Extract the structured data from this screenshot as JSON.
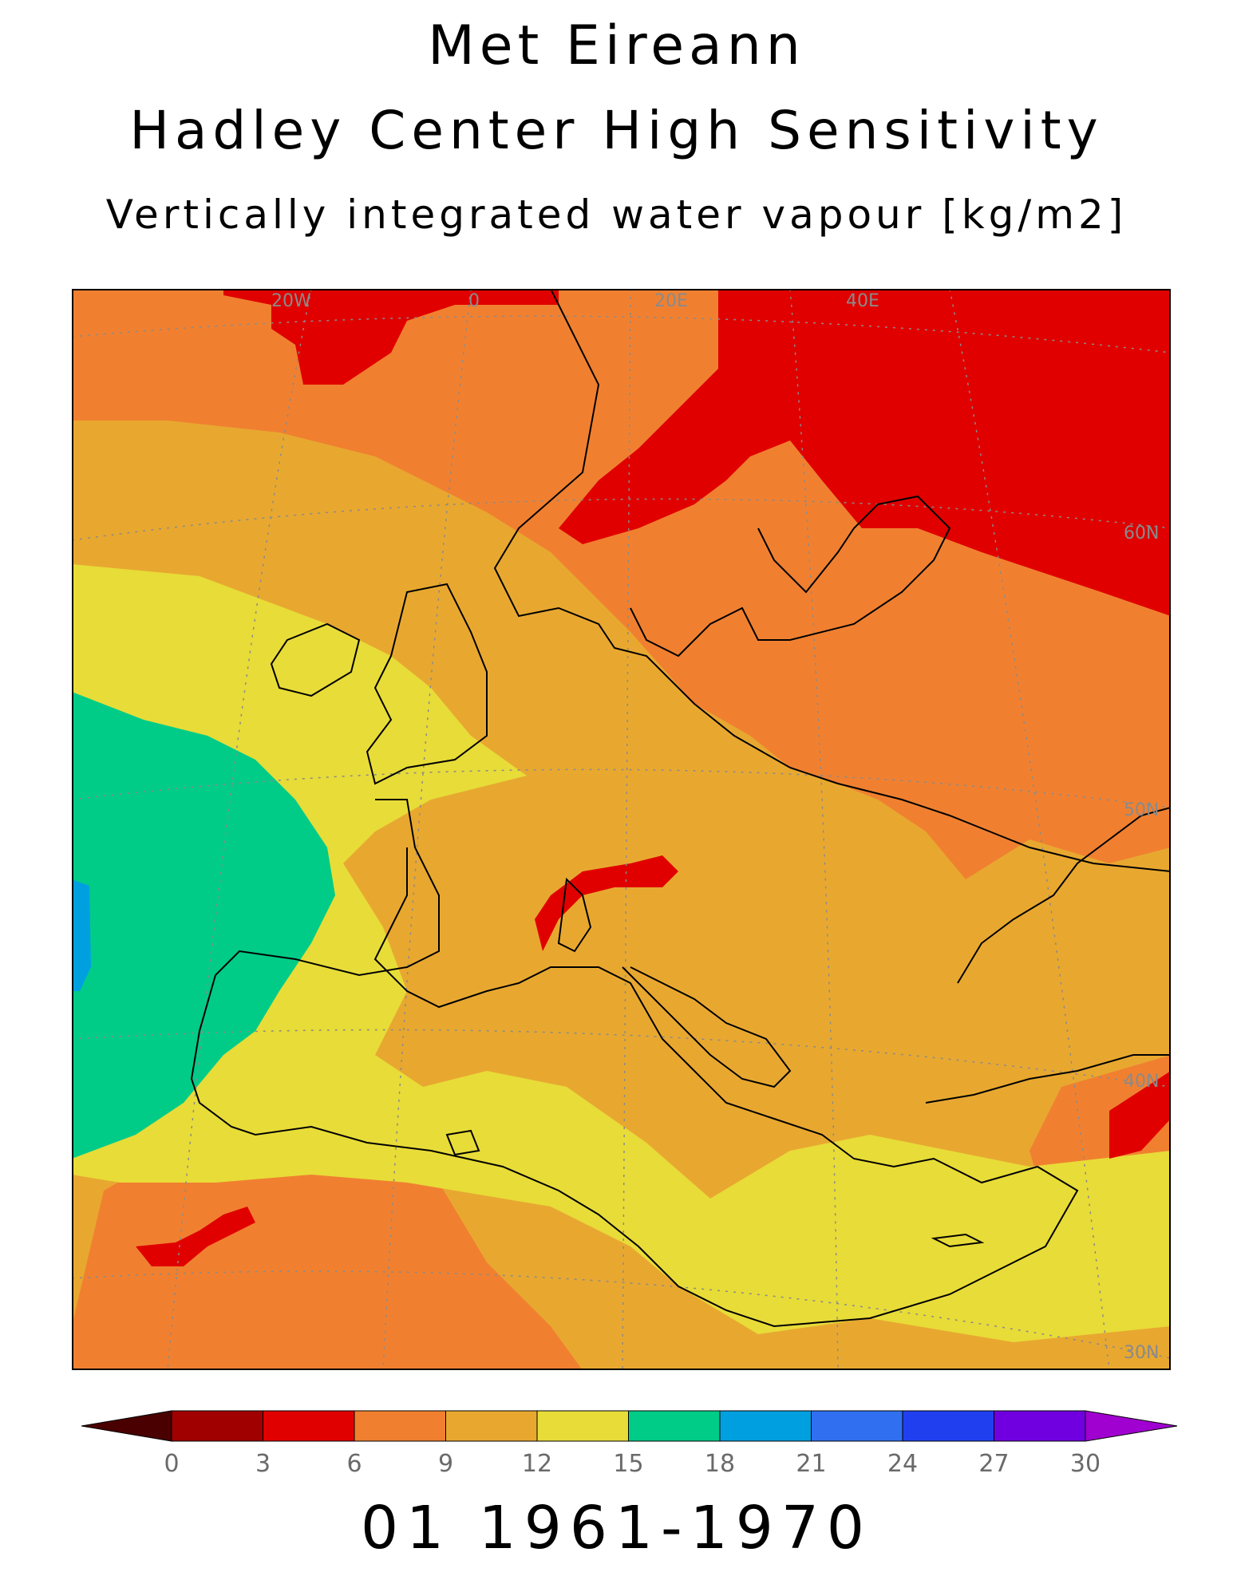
{
  "header": {
    "line1": "Met Eireann",
    "line2": "Hadley Center High Sensitivity",
    "line3": "Vertically integrated water vapour [kg/m2]"
  },
  "map": {
    "graticule_labels": {
      "lon": [
        "20W",
        "0",
        "20E",
        "40E"
      ],
      "lat": [
        "60N",
        "50N",
        "40N",
        "30N"
      ]
    },
    "field_colors": {
      "below_0": "#4a0000",
      "0_3": "#a00000",
      "3_6": "#e00000",
      "6_9": "#f08030",
      "9_12": "#e8a830",
      "12_15": "#e8dc38",
      "15_18": "#00cc88",
      "18_21": "#00a0e0"
    }
  },
  "colorbar": {
    "ticks": [
      "0",
      "3",
      "6",
      "9",
      "12",
      "15",
      "18",
      "21",
      "24",
      "27",
      "30"
    ],
    "colors": [
      "#4a0000",
      "#a00000",
      "#e00000",
      "#f08030",
      "#e8a830",
      "#e8dc38",
      "#00cc88",
      "#00a0e0",
      "#3070f0",
      "#2040f0",
      "#7000e0",
      "#a000d0"
    ]
  },
  "footer": {
    "period": "01 1961-1970"
  }
}
